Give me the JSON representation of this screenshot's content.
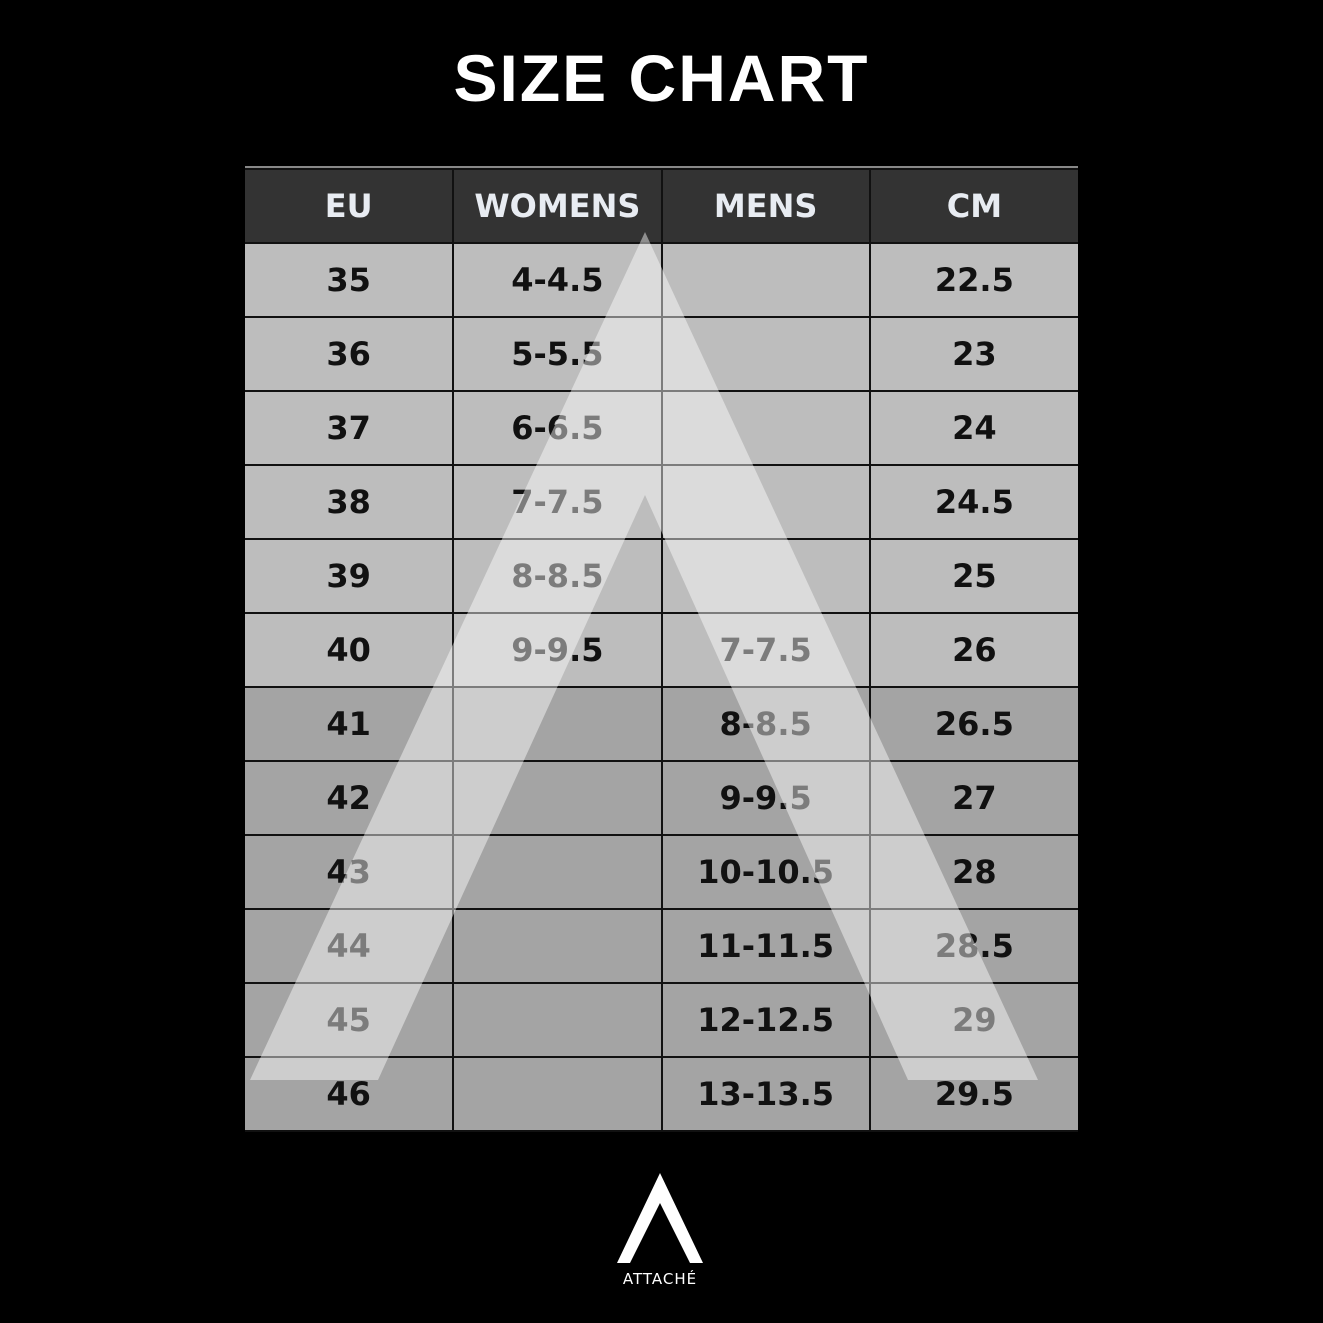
{
  "title": "SIZE CHART",
  "table": {
    "headers": [
      "EU",
      "WOMENS",
      "MENS",
      "CM"
    ],
    "rows": [
      [
        "35",
        "4-4.5",
        "",
        "22.5"
      ],
      [
        "36",
        "5-5.5",
        "",
        "23"
      ],
      [
        "37",
        "6-6.5",
        "",
        "24"
      ],
      [
        "38",
        "7-7.5",
        "",
        "24.5"
      ],
      [
        "39",
        "8-8.5",
        "",
        "25"
      ],
      [
        "40",
        "9-9.5",
        "7-7.5",
        "26"
      ],
      [
        "41",
        "",
        "8-8.5",
        "26.5"
      ],
      [
        "42",
        "",
        "9-9.5",
        "27"
      ],
      [
        "43",
        "",
        "10-10.5",
        "28"
      ],
      [
        "44",
        "",
        "11-11.5",
        "28.5"
      ],
      [
        "45",
        "",
        "12-12.5",
        "29"
      ],
      [
        "46",
        "",
        "13-13.5",
        "29.5"
      ]
    ]
  },
  "colors": {
    "header_bg": "#333333",
    "row_light": "#bdbdbd",
    "row_dark": "#a4a4a4",
    "background": "#000000"
  },
  "logo": {
    "text": "ATTACHÉ",
    "icon": "attache-a-logo-icon"
  }
}
